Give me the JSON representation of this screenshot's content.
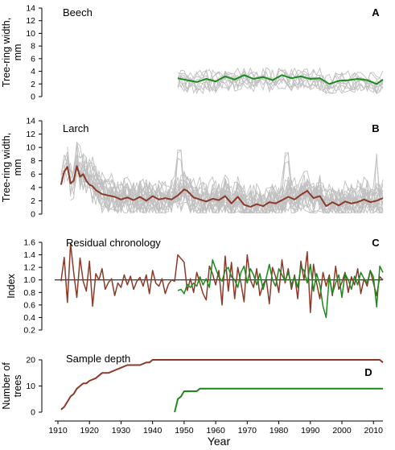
{
  "chart_data": [
    {
      "type": "line",
      "panel_letter": "A",
      "title": "Beech",
      "ylabel": "Tree-ring width, mm",
      "ylim": [
        0,
        14
      ],
      "yticks": [
        0,
        2,
        4,
        6,
        8,
        10,
        12,
        14
      ],
      "xlim": [
        1910,
        2013
      ],
      "individual_series_color": "#c0c0c0",
      "individual_series_count": 9,
      "individual_series_range": {
        "x": [
          1948,
          2013
        ],
        "min": 0.5,
        "max": 6.5
      },
      "series": [
        {
          "color": "#1a8a1a",
          "x": [
            1948,
            1951,
            1954,
            1957,
            1960,
            1963,
            1966,
            1969,
            1972,
            1975,
            1978,
            1981,
            1984,
            1987,
            1990,
            1993,
            1996,
            1999,
            2002,
            2005,
            2008,
            2011,
            2013
          ],
          "values": [
            2.9,
            2.6,
            2.3,
            2.8,
            2.4,
            3.2,
            2.7,
            3.4,
            2.8,
            3.1,
            2.6,
            3.4,
            2.9,
            3.2,
            2.8,
            2.9,
            2.0,
            2.5,
            2.6,
            2.8,
            2.6,
            2.0,
            2.7
          ]
        }
      ]
    },
    {
      "type": "line",
      "panel_letter": "B",
      "title": "Larch",
      "ylabel": "Tree-ring width, mm",
      "ylim": [
        0,
        14
      ],
      "yticks": [
        0,
        2,
        4,
        6,
        8,
        10,
        12,
        14
      ],
      "xlim": [
        1910,
        2013
      ],
      "individual_series_color": "#c0c0c0",
      "individual_series_count": 20,
      "individual_series_range": {
        "x": [
          1911,
          2013
        ],
        "min": 0.2,
        "max": 13.2
      },
      "series": [
        {
          "color": "#8b3a2a",
          "x": [
            1911,
            1912,
            1913,
            1914,
            1915,
            1916,
            1917,
            1918,
            1919,
            1920,
            1921,
            1922,
            1924,
            1926,
            1928,
            1930,
            1932,
            1934,
            1936,
            1938,
            1940,
            1942,
            1944,
            1946,
            1948,
            1950,
            1951,
            1953,
            1955,
            1957,
            1959,
            1961,
            1963,
            1965,
            1967,
            1969,
            1971,
            1973,
            1975,
            1977,
            1979,
            1981,
            1983,
            1985,
            1987,
            1989,
            1991,
            1993,
            1995,
            1997,
            1999,
            2001,
            2003,
            2005,
            2007,
            2009,
            2011,
            2013
          ],
          "values": [
            4.4,
            6.4,
            7.1,
            4.6,
            5.0,
            7.2,
            5.6,
            6.0,
            5.0,
            4.4,
            4.2,
            3.6,
            3.0,
            2.8,
            2.6,
            2.2,
            2.5,
            2.1,
            2.6,
            2.0,
            2.7,
            2.2,
            2.4,
            2.2,
            2.8,
            3.7,
            3.5,
            2.5,
            2.2,
            1.9,
            2.3,
            2.1,
            2.7,
            1.6,
            2.6,
            1.4,
            1.1,
            1.5,
            1.2,
            1.8,
            1.6,
            2.1,
            2.6,
            2.2,
            2.9,
            3.5,
            2.4,
            2.7,
            1.2,
            1.8,
            1.3,
            1.9,
            1.6,
            1.8,
            2.2,
            1.8,
            2.0,
            2.4
          ]
        }
      ]
    },
    {
      "type": "line",
      "panel_letter": "C",
      "title": "Residual chronology",
      "ylabel": "Index",
      "ylim": [
        0.2,
        1.6
      ],
      "yticks": [
        0.2,
        0.4,
        0.6,
        0.8,
        1.0,
        1.2,
        1.4,
        1.6
      ],
      "reference_line": 1.0,
      "xlim": [
        1910,
        2013
      ],
      "series": [
        {
          "color": "#8b3a2a",
          "x": [
            1911,
            1912,
            1913,
            1914,
            1915,
            1916,
            1917,
            1918,
            1919,
            1920,
            1921,
            1922,
            1923,
            1924,
            1925,
            1926,
            1927,
            1928,
            1929,
            1930,
            1931,
            1932,
            1933,
            1934,
            1935,
            1936,
            1937,
            1938,
            1939,
            1940,
            1941,
            1942,
            1943,
            1944,
            1945,
            1946,
            1947,
            1948,
            1949,
            1950,
            1951,
            1952,
            1953,
            1954,
            1955,
            1956,
            1957,
            1958,
            1959,
            1960,
            1961,
            1962,
            1963,
            1964,
            1965,
            1966,
            1967,
            1968,
            1969,
            1970,
            1971,
            1972,
            1973,
            1974,
            1975,
            1976,
            1977,
            1978,
            1979,
            1980,
            1981,
            1982,
            1983,
            1984,
            1985,
            1986,
            1987,
            1988,
            1989,
            1990,
            1991,
            1992,
            1993,
            1994,
            1995,
            1996,
            1997,
            1998,
            1999,
            2000,
            2001,
            2002,
            2003,
            2004,
            2005,
            2006,
            2007,
            2008,
            2009,
            2010,
            2011,
            2012,
            2013
          ],
          "values": [
            0.98,
            1.36,
            0.64,
            1.58,
            1.12,
            0.72,
            1.35,
            0.98,
            0.82,
            1.3,
            0.58,
            1.1,
            1.0,
            1.18,
            0.85,
            0.96,
            1.02,
            0.75,
            0.95,
            0.88,
            1.08,
            0.92,
            1.06,
            0.85,
            0.98,
            1.04,
            0.9,
            1.08,
            0.78,
            1.15,
            0.95,
            0.9,
            1.02,
            0.78,
            0.93,
            1.0,
            0.98,
            1.4,
            1.34,
            1.28,
            0.83,
            1.02,
            0.8,
            1.12,
            0.95,
            0.78,
            0.68,
            1.22,
            1.1,
            0.92,
            1.15,
            0.6,
            1.38,
            0.82,
            1.28,
            0.7,
            1.2,
            0.95,
            0.65,
            1.4,
            1.0,
            0.88,
            1.18,
            0.75,
            0.92,
            1.02,
            0.62,
            1.2,
            1.05,
            0.8,
            1.32,
            0.95,
            1.18,
            0.85,
            1.08,
            0.7,
            1.3,
            1.0,
            1.45,
            0.48,
            1.25,
            0.95,
            0.7,
            1.12,
            0.9,
            1.08,
            0.75,
            1.22,
            0.85,
            0.96,
            1.12,
            0.8,
            1.05,
            0.92,
            1.18,
            0.78,
            1.02,
            0.9,
            1.15,
            0.95,
            0.75,
            1.05,
            1.0
          ]
        },
        {
          "color": "#1a8a1a",
          "x": [
            1948,
            1949,
            1950,
            1951,
            1952,
            1953,
            1954,
            1955,
            1956,
            1957,
            1958,
            1959,
            1960,
            1961,
            1962,
            1963,
            1964,
            1965,
            1966,
            1967,
            1968,
            1969,
            1970,
            1971,
            1972,
            1973,
            1974,
            1975,
            1976,
            1977,
            1978,
            1979,
            1980,
            1981,
            1982,
            1983,
            1984,
            1985,
            1986,
            1987,
            1988,
            1989,
            1990,
            1991,
            1992,
            1993,
            1994,
            1995,
            1996,
            1997,
            1998,
            1999,
            2000,
            2001,
            2002,
            2003,
            2004,
            2005,
            2006,
            2007,
            2008,
            2009,
            2010,
            2011,
            2012,
            2013
          ],
          "values": [
            0.83,
            0.85,
            0.78,
            0.93,
            0.88,
            0.95,
            0.9,
            1.05,
            0.92,
            1.02,
            0.88,
            1.32,
            1.18,
            1.05,
            0.98,
            1.15,
            1.2,
            1.05,
            1.0,
            0.88,
            1.12,
            1.22,
            0.95,
            1.18,
            1.08,
            0.92,
            1.1,
            0.85,
            1.03,
            1.25,
            1.0,
            0.9,
            1.18,
            1.08,
            0.98,
            1.12,
            0.92,
            1.05,
            0.88,
            1.2,
            1.15,
            0.95,
            1.25,
            0.82,
            1.1,
            0.92,
            0.58,
            0.4,
            1.05,
            0.78,
            0.95,
            1.08,
            0.72,
            1.1,
            1.0,
            0.85,
            1.06,
            0.92,
            1.12,
            1.02,
            0.95,
            1.15,
            1.05,
            0.57,
            1.22,
            1.12
          ]
        }
      ]
    },
    {
      "type": "line",
      "panel_letter": "D",
      "title": "Sample depth",
      "ylabel": "Number of trees",
      "ylim": [
        0,
        20
      ],
      "yticks": [
        0,
        10,
        20
      ],
      "xlim": [
        1910,
        2013
      ],
      "xlabel": "Year",
      "xticks": [
        1910,
        1920,
        1930,
        1940,
        1950,
        1960,
        1970,
        1980,
        1990,
        2000,
        2010
      ],
      "series": [
        {
          "color": "#8b3a2a",
          "x": [
            1911,
            1912,
            1913,
            1914,
            1915,
            1916,
            1917,
            1918,
            1919,
            1920,
            1922,
            1924,
            1926,
            1928,
            1930,
            1932,
            1934,
            1936,
            1938,
            1939,
            1940,
            2012,
            2013
          ],
          "values": [
            1,
            2,
            4,
            6,
            7,
            9,
            10,
            11,
            11,
            12,
            13,
            15,
            15,
            16,
            17,
            18,
            18,
            18,
            19,
            19,
            20,
            20,
            19
          ]
        },
        {
          "color": "#1a8a1a",
          "x": [
            1947,
            1948,
            1949,
            1950,
            1951,
            1952,
            1953,
            1954,
            1955,
            1956,
            2013
          ],
          "values": [
            0,
            5,
            6,
            8,
            8,
            8,
            8,
            8,
            9,
            9,
            9
          ]
        }
      ]
    }
  ]
}
